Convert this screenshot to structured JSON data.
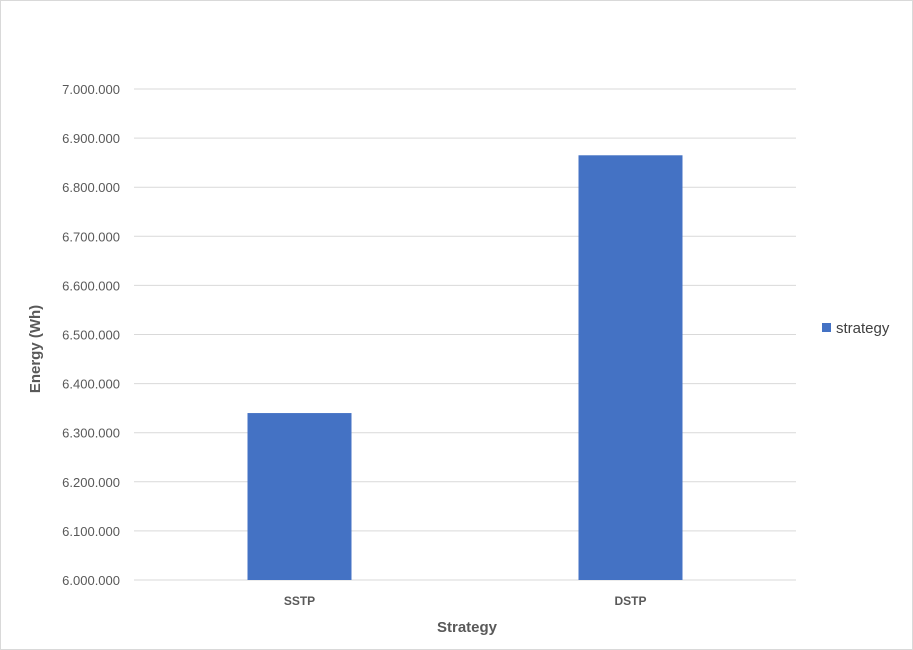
{
  "chart_data": {
    "type": "bar",
    "categories": [
      "SSTP",
      "DSTP"
    ],
    "series": [
      {
        "name": "strategy",
        "values": [
          6340000,
          6865000
        ],
        "color": "#4472C4"
      }
    ],
    "xlabel": "Strategy",
    "ylabel": "Energy (Wh)",
    "ylim": [
      6000000,
      7000000
    ],
    "yticks": [
      6000000,
      6100000,
      6200000,
      6300000,
      6400000,
      6500000,
      6600000,
      6700000,
      6800000,
      6900000,
      7000000
    ],
    "ytick_labels": [
      "6.000.000",
      "6.100.000",
      "6.200.000",
      "6.300.000",
      "6.400.000",
      "6.500.000",
      "6.600.000",
      "6.700.000",
      "6.800.000",
      "6.900.000",
      "7.000.000"
    ],
    "grid": true,
    "legend_position": "right",
    "gridline_color": "#d9d9d9"
  }
}
